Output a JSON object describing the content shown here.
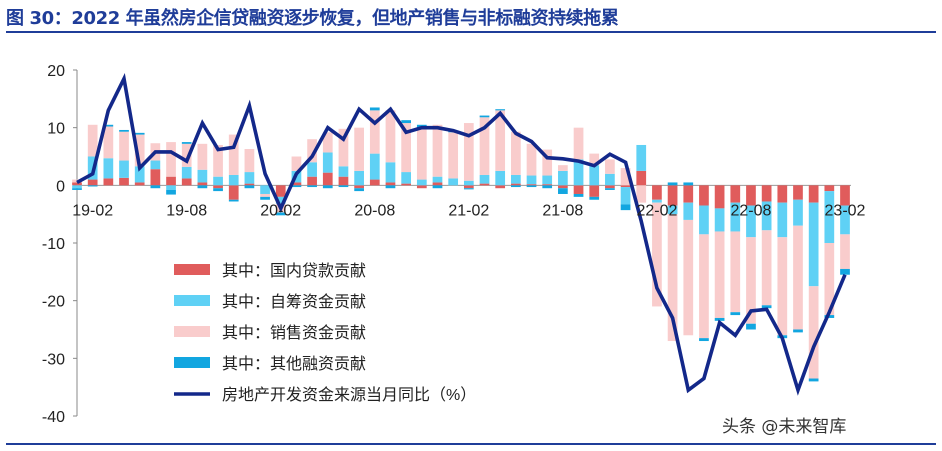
{
  "title": "图 30：2022 年虽然房企信贷融资逐步恢复，但地产销售与非标融资持续拖累",
  "watermark": "头条 @未来智库",
  "colors": {
    "domestic_loans": "#e05c5c",
    "self_raised": "#5fd1f5",
    "sales": "#f9cccc",
    "other": "#12a6e0",
    "yoy_line": "#13288a",
    "title": "#1f3d99"
  },
  "chart_data": {
    "type": "bar+line",
    "title": "",
    "xlabel": "",
    "ylabel": "",
    "ylim": [
      -40,
      20
    ],
    "yticks": [
      20,
      10,
      0,
      -10,
      -20,
      -30,
      -40
    ],
    "xtick_labels": [
      "19-02",
      "19-08",
      "20-02",
      "20-08",
      "21-02",
      "21-08",
      "22-02",
      "22-08",
      "23-02"
    ],
    "legend_position": "bottom-left",
    "grid": false,
    "categories": [
      "19-01",
      "19-02",
      "19-03",
      "19-04",
      "19-05",
      "19-06",
      "19-07",
      "19-08",
      "19-09",
      "19-10",
      "19-11",
      "19-12",
      "20-01",
      "20-02",
      "20-03",
      "20-04",
      "20-05",
      "20-06",
      "20-07",
      "20-08",
      "20-09",
      "20-10",
      "20-11",
      "20-12",
      "21-01",
      "21-02",
      "21-03",
      "21-04",
      "21-05",
      "21-06",
      "21-07",
      "21-08",
      "21-09",
      "21-10",
      "21-11",
      "21-12",
      "22-01",
      "22-02",
      "22-03",
      "22-04",
      "22-05",
      "22-06",
      "22-07",
      "22-08",
      "22-09",
      "22-10",
      "22-11",
      "22-12",
      "23-01",
      "23-02"
    ],
    "series": [
      {
        "name": "其中：国内贷款贡献",
        "kind": "bar",
        "values": [
          0.5,
          1.0,
          1.2,
          1.3,
          0.5,
          2.8,
          1.5,
          1.2,
          0.5,
          -0.5,
          -2.5,
          0.3,
          0,
          -2.0,
          0.5,
          1.5,
          2.2,
          1.5,
          -0.5,
          1.0,
          0.5,
          0.3,
          -0.5,
          0.5,
          0,
          -0.5,
          0.3,
          -0.5,
          0.3,
          0.2,
          0.2,
          -0.5,
          -1.5,
          -2.0,
          -0.5,
          -0.3,
          2.5,
          -2.5,
          -3.5,
          -3.0,
          -3.5,
          -4.0,
          -3.0,
          -3.5,
          -2.8,
          -3.0,
          -2.5,
          -3.0,
          -1.0,
          -3.5
        ]
      },
      {
        "name": "其中：自筹资金贡献",
        "kind": "bar",
        "values": [
          -0.5,
          4.0,
          3.5,
          3.0,
          2.8,
          1.5,
          -0.8,
          2.0,
          2.2,
          1.5,
          1.8,
          2.0,
          -1.5,
          -1.2,
          2.0,
          2.5,
          3.5,
          1.8,
          2.5,
          4.5,
          3.5,
          2.0,
          1.0,
          1.0,
          1.2,
          0.8,
          1.5,
          2.5,
          1.5,
          1.5,
          1.5,
          2.5,
          4.5,
          3.5,
          2.0,
          -3.0,
          4.5,
          -0.5,
          -1.5,
          -3.0,
          -5.0,
          -4.0,
          -5.0,
          -5.5,
          -5.0,
          -6.0,
          -4.5,
          -14.5,
          -9.0,
          -5.0
        ]
      },
      {
        "name": "其中：销售资金贡献",
        "kind": "bar",
        "values": [
          0.5,
          5.5,
          5.5,
          5.0,
          5.5,
          3.0,
          6.0,
          4.0,
          4.5,
          5.5,
          7.0,
          4.0,
          -0.5,
          -1.5,
          2.5,
          4.0,
          3.5,
          6.5,
          7.5,
          7.5,
          9.0,
          8.5,
          9.0,
          9.0,
          8.0,
          10.0,
          10.0,
          10.5,
          7.5,
          5.5,
          4.5,
          1.0,
          5.5,
          2.0,
          2.5,
          3.0,
          -3.0,
          -18.0,
          -22.0,
          -20.0,
          -18.0,
          -15.0,
          -14.0,
          -15.0,
          -13.0,
          -17.0,
          -18.0,
          -16.0,
          -12.5,
          -6.0
        ]
      },
      {
        "name": "其中：其他融资贡献",
        "kind": "bar",
        "values": [
          -0.3,
          -0.2,
          0.3,
          0.3,
          0.3,
          -0.5,
          -0.8,
          0.3,
          -0.5,
          -0.5,
          -0.3,
          -0.5,
          -0.5,
          -0.5,
          -0.3,
          -0.3,
          -0.5,
          -0.3,
          -0.5,
          0.5,
          -0.5,
          0.5,
          0.5,
          -0.5,
          0.3,
          -0.2,
          0.3,
          0.2,
          -0.3,
          -0.3,
          -0.5,
          -1.0,
          -0.5,
          -0.5,
          -0.3,
          -1.0,
          0,
          0,
          0.5,
          0.5,
          -0.5,
          -0.5,
          -0.5,
          -1.0,
          -0.5,
          -0.5,
          -0.5,
          -0.5,
          -0.5,
          -1.0
        ]
      },
      {
        "name": "房地产开发资金来源当月同比（%）",
        "kind": "line",
        "values": [
          0.5,
          2.0,
          13.0,
          18.5,
          3.0,
          5.8,
          5.8,
          4.2,
          10.8,
          6.2,
          6.6,
          13.8,
          2.0,
          -4.0,
          2.0,
          5.0,
          10.0,
          8.0,
          13.2,
          10.8,
          13.2,
          9.2,
          10.0,
          10.0,
          9.5,
          8.6,
          10.0,
          12.5,
          9.0,
          7.6,
          4.8,
          4.6,
          4.2,
          3.4,
          5.4,
          4.0,
          -6.2,
          -17.8,
          -23.0,
          -35.5,
          -33.5,
          -23.8,
          -26.0,
          -21.8,
          -21.5,
          -26.5,
          -35.5,
          -28.0,
          -22.0,
          -15.5
        ]
      }
    ]
  }
}
